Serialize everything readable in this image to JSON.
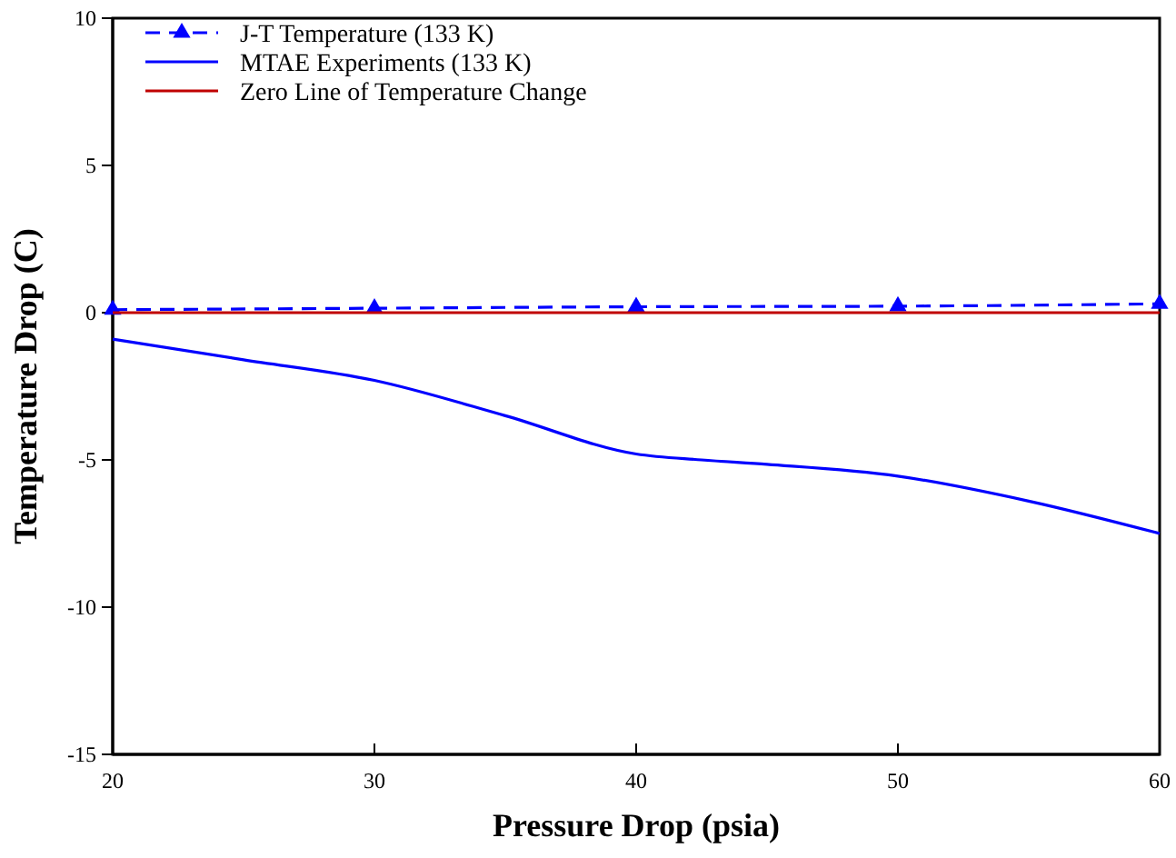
{
  "chart_data": {
    "type": "line",
    "xlabel": "Pressure Drop (psia)",
    "ylabel": "Temperature Drop (C)",
    "xlim": [
      20,
      60
    ],
    "xticks": [
      20,
      30,
      40,
      50,
      60
    ],
    "ylim": [
      -15,
      10
    ],
    "yticks": [
      -15,
      -10,
      -5,
      0,
      5,
      10
    ],
    "grid": false,
    "legend": "top left",
    "series": [
      {
        "name": "J-T Temperature (133 K)",
        "color": "#0000ff",
        "x": [
          20,
          30,
          40,
          50,
          60
        ],
        "values": [
          0.1,
          0.15,
          0.2,
          0.22,
          0.3
        ],
        "marker": "triangle",
        "line_style": "dashed"
      },
      {
        "name": "MTAE Experiments (133 K)",
        "color": "#0000ff",
        "x": [
          20,
          25,
          30,
          35,
          40,
          42.5,
          45,
          50,
          55,
          60
        ],
        "values": [
          -0.9,
          -1.6,
          -2.3,
          -3.5,
          -4.8,
          -5.0,
          -5.15,
          -5.55,
          -6.4,
          -7.5
        ],
        "marker": "none",
        "line_style": "solid"
      },
      {
        "name": "Zero Line of Temperature Change",
        "color": "#c00000",
        "x": [
          20,
          60
        ],
        "values": [
          0,
          0
        ],
        "marker": "none",
        "line_style": "solid"
      }
    ]
  }
}
